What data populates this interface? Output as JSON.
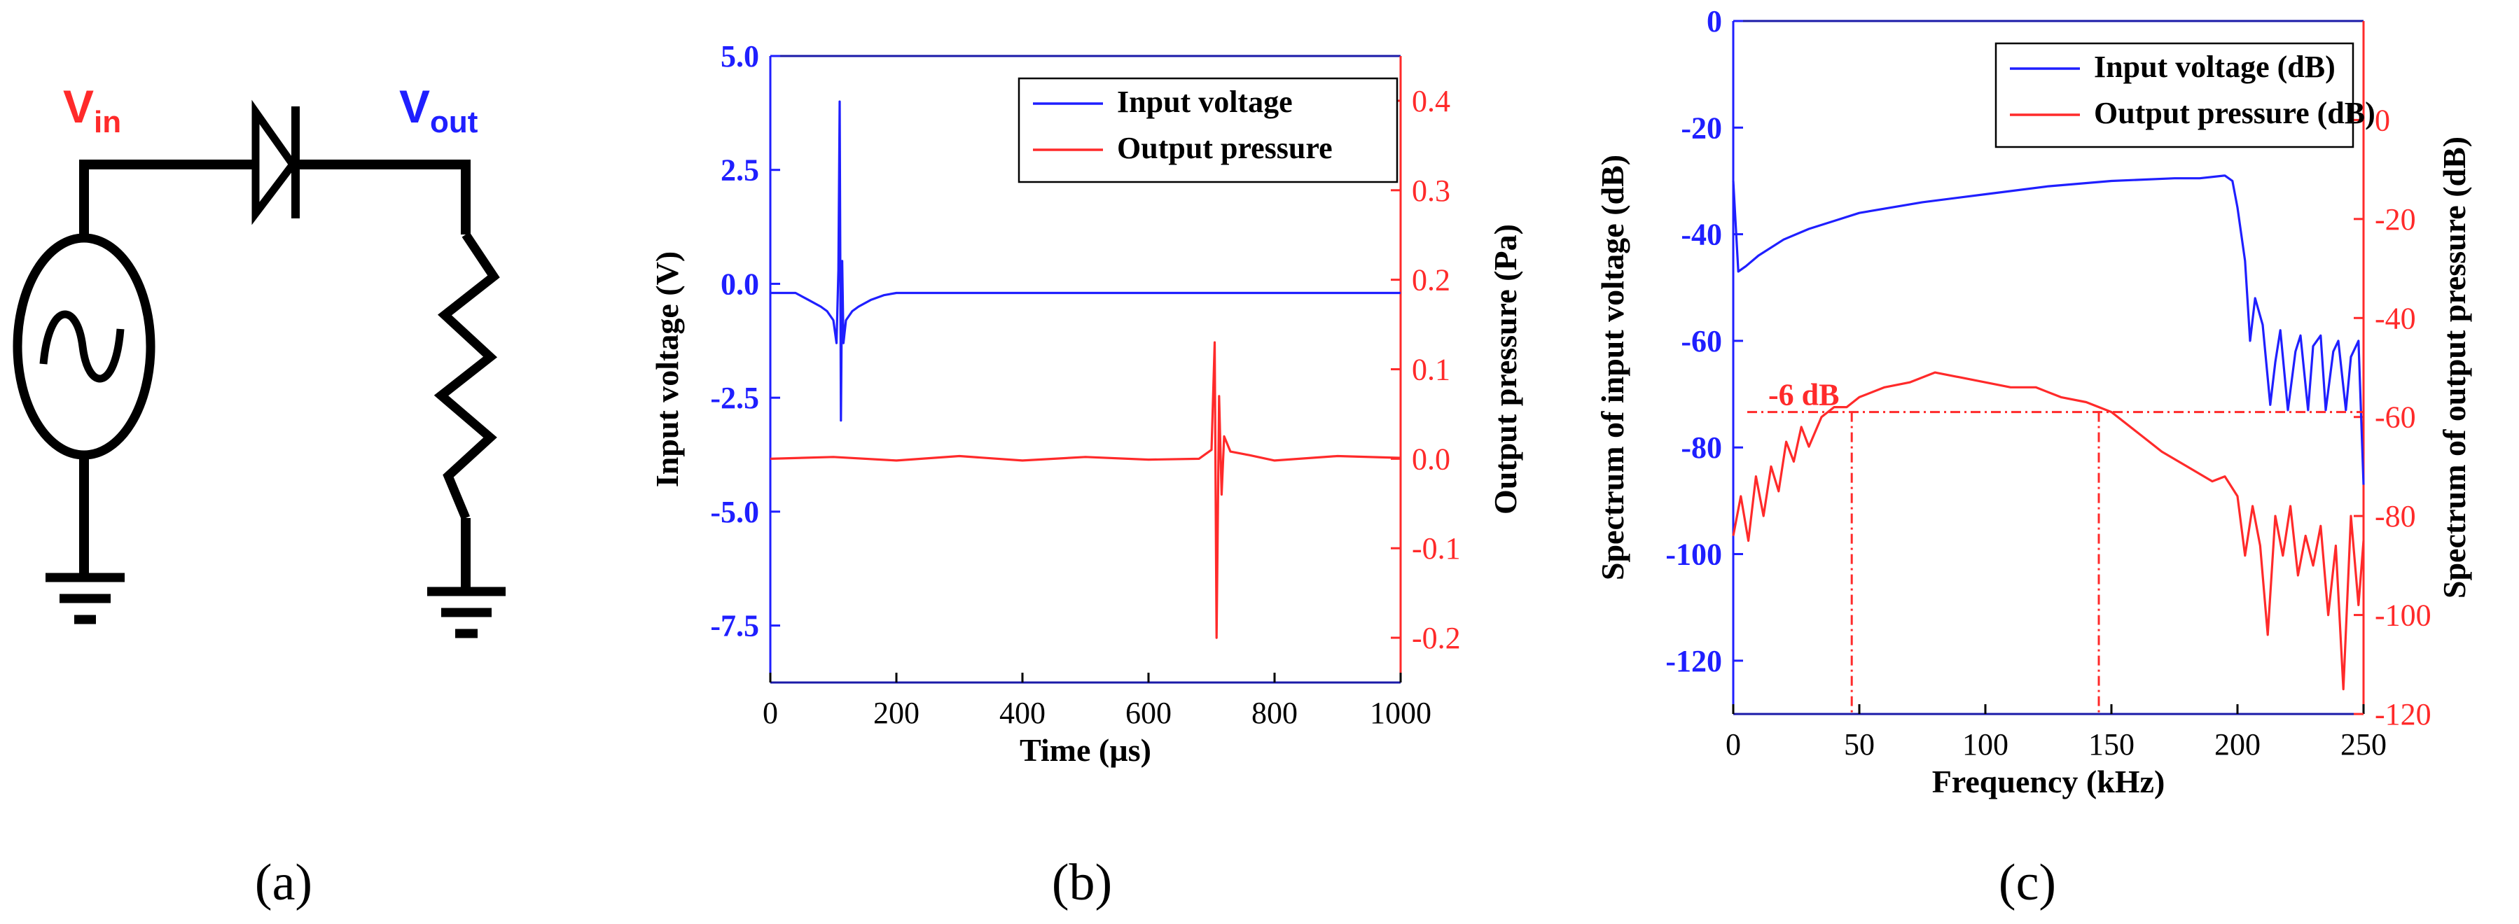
{
  "panels": {
    "a": {
      "label": "(a)",
      "vin_main": "V",
      "vin_sub": "in",
      "vout_main": "V",
      "vout_sub": "out"
    },
    "b": {
      "label": "(b)"
    },
    "c": {
      "label": "(c)"
    }
  },
  "colors": {
    "blue": "#1f1fff",
    "red": "#ff2a2a",
    "black": "#000000"
  },
  "chart_data": [
    {
      "type": "line",
      "panel": "b",
      "xlabel": "Time (µs)",
      "ylabel_left": "Input voltage (V)",
      "ylabel_right": "Output pressure (Pa)",
      "xlim": [
        0,
        1000
      ],
      "ylim_left": [
        -8.75,
        5.0
      ],
      "ylim_right": [
        -0.25,
        0.45
      ],
      "xticks": [
        0,
        200,
        400,
        600,
        800,
        1000
      ],
      "xtick_labels": [
        "0",
        "200",
        "400",
        "600",
        "800",
        "1000"
      ],
      "yticks_left": [
        5.0,
        2.5,
        0.0,
        -2.5,
        -5.0,
        -7.5
      ],
      "ytick_labels_left": [
        "5.0",
        "2.5",
        "0.0",
        "-2.5",
        "-5.0",
        "-7.5"
      ],
      "yticks_right": [
        0.4,
        0.3,
        0.2,
        0.1,
        0.0,
        -0.1,
        -0.2
      ],
      "ytick_labels_right": [
        "0.4",
        "0.3",
        "0.2",
        "0.1",
        "0.0",
        "-0.1",
        "-0.2"
      ],
      "legend_position": "top-right",
      "series": [
        {
          "name": "Input voltage",
          "axis": "left",
          "color": "#1f1fff",
          "x": [
            0,
            40,
            60,
            80,
            90,
            100,
            105,
            108,
            110,
            112,
            114,
            116,
            120,
            130,
            140,
            160,
            180,
            200,
            1000
          ],
          "y": [
            -0.2,
            -0.2,
            -0.35,
            -0.5,
            -0.6,
            -0.8,
            -1.3,
            0.3,
            4.0,
            -3.0,
            0.5,
            -1.3,
            -0.8,
            -0.6,
            -0.5,
            -0.35,
            -0.25,
            -0.2,
            -0.2
          ]
        },
        {
          "name": "Output pressure",
          "axis": "right",
          "color": "#ff2a2a",
          "x": [
            0,
            100,
            200,
            300,
            400,
            500,
            600,
            680,
            700,
            705,
            708,
            712,
            716,
            720,
            730,
            760,
            800,
            900,
            1000
          ],
          "y": [
            0.0,
            0.002,
            -0.002,
            0.003,
            -0.002,
            0.002,
            -0.001,
            0.0,
            0.01,
            0.13,
            -0.2,
            0.07,
            -0.04,
            0.025,
            0.008,
            0.004,
            -0.002,
            0.003,
            0.001
          ]
        }
      ]
    },
    {
      "type": "line",
      "panel": "c",
      "xlabel": "Frequency (kHz)",
      "ylabel_left": "Spectrum of input voltage (dB)",
      "ylabel_right": "Spectrum of output pressure (dB)",
      "xlim": [
        0,
        250
      ],
      "ylim_left": [
        -130,
        0
      ],
      "ylim_right": [
        -120,
        20
      ],
      "xticks": [
        0,
        50,
        100,
        150,
        200,
        250
      ],
      "xtick_labels": [
        "0",
        "50",
        "100",
        "150",
        "200",
        "250"
      ],
      "yticks_left": [
        0,
        -20,
        -40,
        -60,
        -80,
        -100,
        -120
      ],
      "ytick_labels_left": [
        "0",
        "-20",
        "-40",
        "-60",
        "-80",
        "-100",
        "-120"
      ],
      "yticks_right": [
        0,
        -20,
        -40,
        -60,
        -80,
        -100,
        -120
      ],
      "ytick_labels_right": [
        "0",
        "-20",
        "-40",
        "-60",
        "-80",
        "-100",
        "-120"
      ],
      "legend_position": "top-right",
      "annotation": {
        "text": "-6 dB",
        "level_right_db": -59,
        "x_low": 47,
        "x_high": 145
      },
      "series": [
        {
          "name": "Input voltage (dB)",
          "axis": "left",
          "color": "#1f1fff",
          "x": [
            0,
            2,
            5,
            10,
            20,
            30,
            40,
            50,
            75,
            100,
            125,
            150,
            175,
            185,
            195,
            198,
            200,
            203,
            205,
            207,
            210,
            213,
            215,
            217,
            220,
            223,
            225,
            228,
            230,
            233,
            235,
            238,
            240,
            243,
            245,
            248,
            250
          ],
          "y": [
            -30,
            -47,
            -46,
            -44,
            -41,
            -39,
            -37.5,
            -36,
            -34,
            -32.5,
            -31,
            -30,
            -29.5,
            -29.5,
            -29,
            -30,
            -35,
            -45,
            -60,
            -52,
            -57,
            -72,
            -64,
            -58,
            -73,
            -62,
            -59,
            -73,
            -61,
            -59,
            -73,
            -62,
            -60,
            -73,
            -63,
            -60,
            -87
          ]
        },
        {
          "name": "Output pressure (dB)",
          "axis": "right",
          "color": "#ff2a2a",
          "x": [
            0,
            3,
            6,
            9,
            12,
            15,
            18,
            21,
            24,
            27,
            30,
            35,
            40,
            45,
            50,
            60,
            70,
            80,
            90,
            100,
            110,
            120,
            130,
            140,
            150,
            160,
            170,
            180,
            190,
            195,
            200,
            203,
            206,
            209,
            212,
            215,
            218,
            221,
            224,
            227,
            230,
            233,
            236,
            239,
            242,
            245,
            248,
            250
          ],
          "y": [
            -84,
            -76,
            -85,
            -72,
            -80,
            -70,
            -75,
            -65,
            -69,
            -62,
            -66,
            -60,
            -58,
            -58,
            -56,
            -54,
            -53,
            -51,
            -52,
            -53,
            -54,
            -54,
            -56,
            -57,
            -59,
            -63,
            -67,
            -70,
            -73,
            -72,
            -76,
            -88,
            -78,
            -86,
            -104,
            -80,
            -88,
            -78,
            -92,
            -84,
            -90,
            -82,
            -100,
            -86,
            -115,
            -80,
            -98,
            -85
          ]
        }
      ]
    }
  ]
}
